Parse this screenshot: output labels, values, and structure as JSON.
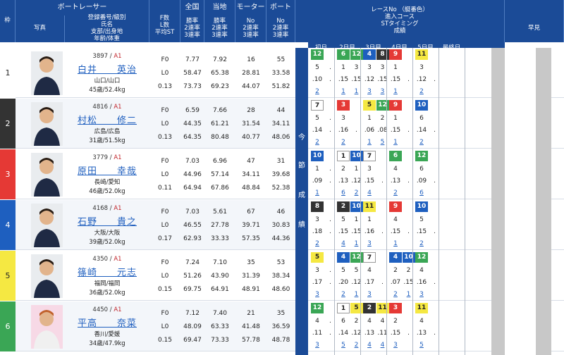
{
  "headers": {
    "waku": "枠",
    "photo": "写真",
    "racer": "ボートレーサー",
    "racer_sub": [
      "登録番号/級別",
      "氏名",
      "支部/出身地",
      "年齢/体重"
    ],
    "stats": "F数\nL数\n平均ST",
    "national": "全国",
    "national_sub": "勝率\n2連率\n3連率",
    "local": "当地",
    "local_sub": "勝率\n2連率\n3連率",
    "motor": "モーター",
    "motor_sub": "No\n2連率\n3連率",
    "boat": "ボート",
    "boat_sub": "No\n2連率\n3連率",
    "results": "レースNo （艇番色）",
    "results_sub": "進入コース\nSTタイミング\n成績",
    "early": "早見",
    "days": [
      "初日",
      "2日目",
      "3日目",
      "4日目",
      "5日目",
      "最終日"
    ],
    "current": [
      "今",
      "節",
      "成",
      "績"
    ]
  },
  "colors": {
    "header": "#1b4b97",
    "w1": "#ffffff",
    "w2": "#333333",
    "w3": "#e53935",
    "w4": "#1e5fbf",
    "w5": "#f5e842",
    "w6": "#3aa655"
  },
  "racers": [
    {
      "waku": "1",
      "reg": "3897",
      "cls": "A1",
      "name": "白井　　英治",
      "branch": "山口/山口",
      "age": "45歳/52.4kg",
      "stats": [
        "F0",
        "L0",
        "0.13"
      ],
      "national": [
        "7.77",
        "58.47",
        "73.73"
      ],
      "local": [
        "7.92",
        "65.38",
        "69.23"
      ],
      "motor": [
        "16",
        "28.81",
        "44.07"
      ],
      "boat": [
        "55",
        "33.58",
        "51.82"
      ],
      "results": [
        [
          "12",
          "5",
          ".10",
          "2"
        ],
        [
          "",
          ".",
          ".",
          ""
        ],
        [
          "6",
          "1",
          ".15",
          "1"
        ],
        [
          "12",
          "3",
          ".15",
          "1"
        ],
        [
          "4",
          "3",
          ".12",
          "3"
        ],
        [
          "8",
          "3",
          ".15",
          "3"
        ],
        [
          "9",
          "1",
          ".15",
          "1"
        ],
        [
          "",
          "",
          ".",
          ""
        ],
        [
          "11",
          "3",
          ".12",
          "2"
        ],
        [
          "",
          "",
          ".",
          ""
        ]
      ]
    },
    {
      "waku": "2",
      "reg": "4816",
      "cls": "A1",
      "name": "村松　　修二",
      "branch": "広島/広島",
      "age": "31歳/51.5kg",
      "stats": [
        "F0",
        "L0",
        "0.13"
      ],
      "national": [
        "6.59",
        "44.35",
        "64.35"
      ],
      "local": [
        "7.66",
        "61.21",
        "80.48"
      ],
      "motor": [
        "28",
        "31.54",
        "40.77"
      ],
      "boat": [
        "44",
        "34.11",
        "48.06"
      ],
      "results": [
        [
          "7",
          "5",
          ".14",
          "2"
        ],
        [
          "",
          ".",
          ".",
          ""
        ],
        [
          "3",
          "3",
          ".16",
          "2"
        ],
        [
          "",
          "",
          ".",
          ""
        ],
        [
          "5",
          "1",
          ".06",
          "1"
        ],
        [
          "12",
          "2",
          ".08",
          "5"
        ],
        [
          "9",
          "1",
          ".15",
          "1"
        ],
        [
          "",
          "",
          ".",
          ""
        ],
        [
          "10",
          "6",
          ".14",
          "2"
        ],
        [
          "",
          "",
          ".",
          ""
        ]
      ]
    },
    {
      "waku": "3",
      "reg": "3779",
      "cls": "A1",
      "name": "原田　　幸哉",
      "branch": "長崎/愛知",
      "age": "46歳/52.0kg",
      "stats": [
        "F0",
        "L0",
        "0.11"
      ],
      "national": [
        "7.03",
        "44.96",
        "64.94"
      ],
      "local": [
        "6.96",
        "57.14",
        "67.86"
      ],
      "motor": [
        "47",
        "34.11",
        "48.84"
      ],
      "boat": [
        "31",
        "39.68",
        "52.38"
      ],
      "results": [
        [
          "10",
          "1",
          ".09",
          "1"
        ],
        [
          "",
          ".",
          ".",
          ""
        ],
        [
          "1",
          "2",
          ".13",
          "6"
        ],
        [
          "10",
          "1",
          ".12",
          "2"
        ],
        [
          "7",
          "3",
          ".15",
          "4"
        ],
        [
          "",
          "",
          ".",
          ""
        ],
        [
          "6",
          "4",
          ".13",
          "2"
        ],
        [
          "",
          "",
          ".",
          ""
        ],
        [
          "12",
          "6",
          ".09",
          "6"
        ],
        [
          "",
          "",
          ".",
          ""
        ]
      ]
    },
    {
      "waku": "4",
      "reg": "4168",
      "cls": "A1",
      "name": "石野　　貴之",
      "branch": "大阪/大阪",
      "age": "39歳/52.0kg",
      "stats": [
        "F0",
        "L0",
        "0.17"
      ],
      "national": [
        "7.03",
        "46.55",
        "62.93"
      ],
      "local": [
        "5.61",
        "27.78",
        "33.33"
      ],
      "motor": [
        "67",
        "39.71",
        "57.35"
      ],
      "boat": [
        "46",
        "30.83",
        "44.36"
      ],
      "results": [
        [
          "8",
          "3",
          ".18",
          "2"
        ],
        [
          "",
          ".",
          ".",
          ""
        ],
        [
          "2",
          "5",
          ".15",
          "4"
        ],
        [
          "10",
          "1",
          ".15",
          "1"
        ],
        [
          "11",
          "1",
          ".16",
          "3"
        ],
        [
          "",
          "",
          ".",
          ""
        ],
        [
          "9",
          "4",
          ".15",
          "1"
        ],
        [
          "",
          "",
          ".",
          ""
        ],
        [
          "10",
          "5",
          ".15",
          "2"
        ],
        [
          "",
          "",
          ".",
          ""
        ]
      ]
    },
    {
      "waku": "5",
      "reg": "4350",
      "cls": "A1",
      "name": "篠崎　　元志",
      "branch": "福岡/福岡",
      "age": "36歳/52.0kg",
      "stats": [
        "F0",
        "L0",
        "0.15"
      ],
      "national": [
        "7.24",
        "51.26",
        "69.75"
      ],
      "local": [
        "7.10",
        "43.90",
        "64.91"
      ],
      "motor": [
        "35",
        "31.39",
        "48.91"
      ],
      "boat": [
        "53",
        "38.34",
        "48.60"
      ],
      "results": [
        [
          "5",
          "3",
          ".17",
          "3"
        ],
        [
          "",
          ".",
          ".",
          ""
        ],
        [
          "4",
          "5",
          ".20",
          "2"
        ],
        [
          "12",
          "5",
          ".12",
          "1"
        ],
        [
          "7",
          "4",
          ".17",
          "3"
        ],
        [
          "",
          "",
          ".",
          ""
        ],
        [
          "4",
          "2",
          ".07",
          "2"
        ],
        [
          "10",
          "2",
          ".15",
          "1"
        ],
        [
          "12",
          "4",
          ".16",
          "3"
        ],
        [
          "",
          "",
          ".",
          ""
        ]
      ]
    },
    {
      "waku": "6",
      "reg": "4450",
      "cls": "A1",
      "name": "平高　　奈菜",
      "branch": "香川/愛媛",
      "age": "34歳/47.9kg",
      "stats": [
        "F0",
        "L0",
        "0.15"
      ],
      "national": [
        "7.12",
        "48.09",
        "69.47"
      ],
      "local": [
        "7.40",
        "63.33",
        "73.33"
      ],
      "motor": [
        "21",
        "41.48",
        "57.78"
      ],
      "boat": [
        "35",
        "36.59",
        "48.78"
      ],
      "results": [
        [
          "12",
          "4",
          ".11",
          "3"
        ],
        [
          "",
          ".",
          ".",
          ""
        ],
        [
          "1",
          "6",
          ".14",
          "5"
        ],
        [
          "5",
          "2",
          ".12",
          "2"
        ],
        [
          "2",
          "4",
          ".13",
          "4"
        ],
        [
          "11",
          "4",
          ".11",
          "4"
        ],
        [
          "3",
          "2",
          ".15",
          "3"
        ],
        [
          "",
          "",
          ".",
          ""
        ],
        [
          "11",
          "4",
          ".13",
          "5"
        ],
        [
          "",
          "",
          ".",
          ""
        ]
      ]
    }
  ]
}
